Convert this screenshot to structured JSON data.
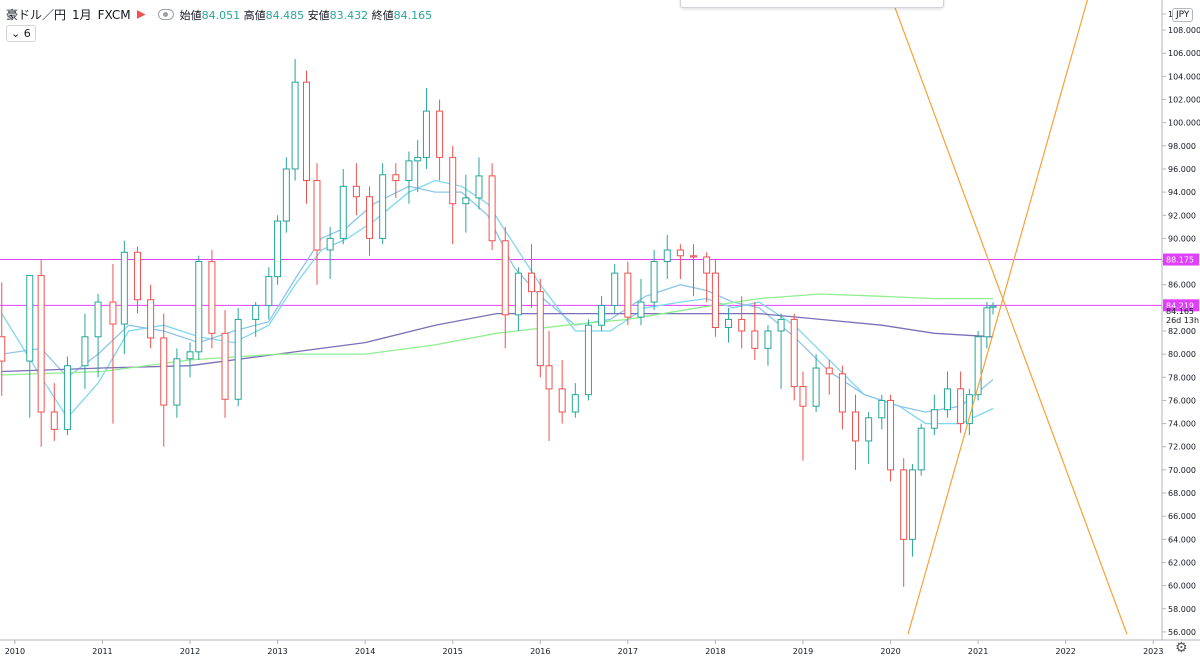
{
  "header": {
    "symbol": "豪ドル／円",
    "interval": "1月",
    "source": "FXCM",
    "open_label": "始値",
    "open_value": "84.051",
    "high_label": "高値",
    "high_value": "84.485",
    "low_label": "安値",
    "low_value": "83.432",
    "close_label": "終値",
    "close_value": "84.165"
  },
  "indicator_toggle": {
    "label": "6"
  },
  "currency_label": "JPY",
  "price_axis": {
    "ticks": [
      "1",
      "108.000",
      "106.000",
      "104.000",
      "102.000",
      "100.000",
      "98.000",
      "96.000",
      "94.000",
      "92.000",
      "90.000",
      "88.000",
      "86.000",
      "84.000",
      "82.000",
      "80.000",
      "78.000",
      "76.000",
      "74.000",
      "72.000",
      "70.000",
      "68.000",
      "66.000",
      "64.000",
      "62.000",
      "60.000",
      "58.000",
      "56.000"
    ],
    "tags": [
      {
        "text": "88.175",
        "value": 88.175,
        "color": "#e040fb"
      },
      {
        "text": "84.219",
        "value": 84.219,
        "color": "#e040fb"
      }
    ],
    "last_price": "84.165",
    "countdown": "26d 13h"
  },
  "time_axis": {
    "ticks": [
      "2010",
      "2011",
      "2012",
      "2013",
      "2014",
      "2015",
      "2016",
      "2017",
      "2018",
      "2019",
      "2020",
      "2021",
      "2022",
      "2023"
    ]
  },
  "chart_data": {
    "type": "candlestick",
    "title": "",
    "xlabel": "",
    "ylabel": "",
    "y_range": [
      55.3,
      110.6
    ],
    "x_range": [
      2009.83,
      2023.1
    ],
    "grid": false,
    "up_color": "#26a69a",
    "down_color": "#ef5350",
    "candle_points": [
      [
        2009.85,
        81.5,
        86.2,
        76.4,
        79.4
      ],
      [
        2010.17,
        79.4,
        82.1,
        74.5,
        86.8
      ],
      [
        2010.3,
        86.8,
        88.2,
        72.0,
        75.0
      ],
      [
        2010.45,
        75.0,
        77.5,
        72.5,
        73.5
      ],
      [
        2010.6,
        73.5,
        79.8,
        73.0,
        79.0
      ],
      [
        2010.8,
        79.0,
        83.5,
        77.0,
        81.5
      ],
      [
        2010.95,
        81.5,
        85.2,
        78.0,
        84.5
      ],
      [
        2011.12,
        84.5,
        87.8,
        74.0,
        82.6
      ],
      [
        2011.25,
        82.6,
        89.8,
        80.0,
        88.8
      ],
      [
        2011.4,
        88.8,
        89.3,
        83.5,
        84.7
      ],
      [
        2011.55,
        84.7,
        86.0,
        80.5,
        81.4
      ],
      [
        2011.7,
        81.4,
        83.5,
        72.0,
        75.6
      ],
      [
        2011.85,
        75.6,
        80.5,
        74.5,
        79.6
      ],
      [
        2012.0,
        79.6,
        81.0,
        78.0,
        80.2
      ],
      [
        2012.1,
        80.2,
        88.5,
        79.5,
        88.0
      ],
      [
        2012.25,
        88.0,
        89.0,
        80.5,
        81.8
      ],
      [
        2012.4,
        81.8,
        83.8,
        74.5,
        76.1
      ],
      [
        2012.55,
        76.1,
        84.0,
        75.5,
        83.0
      ],
      [
        2012.75,
        83.0,
        84.5,
        81.5,
        84.2
      ],
      [
        2012.9,
        84.2,
        87.5,
        83.0,
        86.7
      ],
      [
        2013.0,
        86.7,
        92.0,
        86.0,
        91.5
      ],
      [
        2013.1,
        91.5,
        97.0,
        90.5,
        96.0
      ],
      [
        2013.2,
        96.0,
        105.5,
        95.0,
        103.5
      ],
      [
        2013.33,
        103.5,
        104.5,
        93.0,
        95.0
      ],
      [
        2013.45,
        95.0,
        96.5,
        86.0,
        89.0
      ],
      [
        2013.6,
        89.0,
        91.0,
        86.5,
        90.0
      ],
      [
        2013.75,
        90.0,
        96.0,
        89.5,
        94.5
      ],
      [
        2013.9,
        94.5,
        96.5,
        92.0,
        93.6
      ],
      [
        2014.05,
        93.6,
        94.5,
        88.5,
        90.0
      ],
      [
        2014.2,
        90.0,
        96.5,
        89.5,
        95.5
      ],
      [
        2014.35,
        95.5,
        96.5,
        93.5,
        95.0
      ],
      [
        2014.5,
        95.0,
        97.5,
        93.0,
        96.7
      ],
      [
        2014.6,
        96.7,
        98.5,
        94.0,
        97.0
      ],
      [
        2014.7,
        97.0,
        103.0,
        96.0,
        101.0
      ],
      [
        2014.85,
        101.0,
        102.0,
        95.0,
        97.0
      ],
      [
        2015.0,
        97.0,
        98.0,
        89.5,
        93.0
      ],
      [
        2015.15,
        93.0,
        95.5,
        90.5,
        93.5
      ],
      [
        2015.3,
        93.5,
        97.0,
        92.5,
        95.4
      ],
      [
        2015.45,
        95.4,
        96.5,
        89.0,
        89.8
      ],
      [
        2015.6,
        89.8,
        91.0,
        80.5,
        83.4
      ],
      [
        2015.75,
        83.4,
        87.5,
        82.0,
        87.0
      ],
      [
        2015.9,
        87.0,
        89.5,
        84.0,
        85.4
      ],
      [
        2016.0,
        85.4,
        86.5,
        78.0,
        79.0
      ],
      [
        2016.1,
        79.0,
        82.0,
        72.5,
        77.0
      ],
      [
        2016.25,
        77.0,
        79.5,
        74.0,
        75.0
      ],
      [
        2016.4,
        75.0,
        77.5,
        74.5,
        76.5
      ],
      [
        2016.55,
        76.5,
        83.0,
        76.0,
        82.5
      ],
      [
        2016.7,
        82.5,
        85.0,
        82.0,
        84.2
      ],
      [
        2016.85,
        84.2,
        87.8,
        83.5,
        87.0
      ],
      [
        2017.0,
        87.0,
        88.0,
        82.5,
        83.2
      ],
      [
        2017.15,
        83.2,
        86.5,
        82.5,
        84.5
      ],
      [
        2017.3,
        84.5,
        89.0,
        83.8,
        88.0
      ],
      [
        2017.45,
        88.0,
        90.3,
        86.5,
        89.0
      ],
      [
        2017.6,
        89.0,
        89.5,
        86.5,
        88.5
      ],
      [
        2017.75,
        88.5,
        89.5,
        85.0,
        88.4
      ],
      [
        2017.9,
        88.4,
        88.8,
        84.5,
        87.0
      ],
      [
        2018.0,
        87.0,
        88.2,
        81.5,
        82.3
      ],
      [
        2018.15,
        82.3,
        84.0,
        81.0,
        83.0
      ],
      [
        2018.3,
        83.0,
        85.0,
        80.5,
        82.0
      ],
      [
        2018.45,
        82.0,
        84.5,
        79.5,
        80.5
      ],
      [
        2018.6,
        80.5,
        82.5,
        79.0,
        82.0
      ],
      [
        2018.75,
        82.0,
        83.5,
        77.0,
        83.0
      ],
      [
        2018.9,
        83.0,
        83.5,
        76.0,
        77.2
      ],
      [
        2019.0,
        77.2,
        78.5,
        70.8,
        75.5
      ],
      [
        2019.15,
        75.5,
        80.0,
        75.0,
        78.8
      ],
      [
        2019.3,
        78.8,
        79.5,
        76.5,
        78.3
      ],
      [
        2019.45,
        78.3,
        79.0,
        73.5,
        75.0
      ],
      [
        2019.6,
        75.0,
        76.5,
        70.0,
        72.5
      ],
      [
        2019.75,
        72.5,
        75.0,
        70.5,
        74.5
      ],
      [
        2019.9,
        74.5,
        76.5,
        73.5,
        76.0
      ],
      [
        2020.0,
        76.0,
        76.5,
        69.0,
        70.0
      ],
      [
        2020.15,
        70.0,
        71.0,
        59.9,
        64.0
      ],
      [
        2020.25,
        64.0,
        70.5,
        62.5,
        70.0
      ],
      [
        2020.35,
        70.0,
        74.0,
        69.5,
        73.6
      ],
      [
        2020.5,
        73.6,
        76.5,
        73.0,
        75.2
      ],
      [
        2020.65,
        75.2,
        78.5,
        74.5,
        77.0
      ],
      [
        2020.8,
        77.0,
        78.5,
        73.2,
        74.0
      ],
      [
        2020.9,
        74.0,
        77.0,
        73.0,
        76.5
      ],
      [
        2021.0,
        76.5,
        82.0,
        76.0,
        81.5
      ],
      [
        2021.1,
        81.5,
        84.5,
        80.5,
        84.0
      ],
      [
        2021.17,
        84.051,
        84.485,
        83.432,
        84.165
      ]
    ],
    "moving_averages": [
      {
        "color": "#7fd8f0",
        "points": [
          [
            2009.85,
            83.5
          ],
          [
            2010.3,
            78.0
          ],
          [
            2010.6,
            74.5
          ],
          [
            2010.95,
            77.5
          ],
          [
            2011.3,
            82.0
          ],
          [
            2011.7,
            82.5
          ],
          [
            2012.1,
            81.5
          ],
          [
            2012.5,
            81.0
          ],
          [
            2012.9,
            82.5
          ],
          [
            2013.2,
            86.0
          ],
          [
            2013.5,
            89.0
          ],
          [
            2013.8,
            90.0
          ],
          [
            2014.1,
            91.5
          ],
          [
            2014.5,
            94.0
          ],
          [
            2014.8,
            95.0
          ],
          [
            2015.1,
            94.5
          ],
          [
            2015.4,
            93.0
          ],
          [
            2015.7,
            89.5
          ],
          [
            2016.0,
            86.0
          ],
          [
            2016.4,
            82.0
          ],
          [
            2016.8,
            82.0
          ],
          [
            2017.2,
            84.0
          ],
          [
            2017.6,
            84.5
          ],
          [
            2017.9,
            84.8
          ],
          [
            2018.2,
            84.0
          ],
          [
            2018.5,
            84.5
          ],
          [
            2018.9,
            82.5
          ],
          [
            2019.3,
            79.5
          ],
          [
            2019.7,
            76.5
          ],
          [
            2020.1,
            75.5
          ],
          [
            2020.4,
            74.0
          ],
          [
            2020.8,
            74.0
          ],
          [
            2021.17,
            75.3
          ]
        ]
      },
      {
        "color": "#8ec5e8",
        "points": [
          [
            2009.85,
            80.0
          ],
          [
            2010.3,
            80.5
          ],
          [
            2010.6,
            78.0
          ],
          [
            2010.95,
            80.0
          ],
          [
            2011.3,
            82.5
          ],
          [
            2011.7,
            82.0
          ],
          [
            2012.1,
            81.0
          ],
          [
            2012.5,
            82.0
          ],
          [
            2012.9,
            82.8
          ],
          [
            2013.2,
            86.5
          ],
          [
            2013.5,
            90.0
          ],
          [
            2013.8,
            91.0
          ],
          [
            2014.1,
            93.0
          ],
          [
            2014.5,
            94.5
          ],
          [
            2014.8,
            94.0
          ],
          [
            2015.1,
            94.0
          ],
          [
            2015.4,
            92.0
          ],
          [
            2015.7,
            87.5
          ],
          [
            2016.0,
            85.0
          ],
          [
            2016.4,
            82.5
          ],
          [
            2016.8,
            83.0
          ],
          [
            2017.2,
            85.0
          ],
          [
            2017.6,
            86.0
          ],
          [
            2017.9,
            85.5
          ],
          [
            2018.2,
            84.5
          ],
          [
            2018.5,
            84.0
          ],
          [
            2018.9,
            81.5
          ],
          [
            2019.3,
            78.5
          ],
          [
            2019.7,
            76.5
          ],
          [
            2020.1,
            75.5
          ],
          [
            2020.4,
            75.0
          ],
          [
            2020.8,
            75.5
          ],
          [
            2021.17,
            77.8
          ]
        ]
      },
      {
        "color": "#7b6fb8",
        "points": [
          [
            2009.85,
            78.5
          ],
          [
            2011.0,
            78.8
          ],
          [
            2012.0,
            79.0
          ],
          [
            2013.0,
            80.0
          ],
          [
            2014.0,
            81.0
          ],
          [
            2014.8,
            82.5
          ],
          [
            2015.5,
            83.5
          ],
          [
            2016.3,
            83.5
          ],
          [
            2017.0,
            83.5
          ],
          [
            2017.8,
            83.5
          ],
          [
            2018.5,
            83.5
          ],
          [
            2019.2,
            83.0
          ],
          [
            2019.9,
            82.5
          ],
          [
            2020.5,
            81.8
          ],
          [
            2021.17,
            81.5
          ]
        ]
      },
      {
        "color": "#90ee90",
        "points": [
          [
            2009.85,
            78.2
          ],
          [
            2011.0,
            78.5
          ],
          [
            2012.0,
            79.5
          ],
          [
            2013.0,
            80.0
          ],
          [
            2014.0,
            80.0
          ],
          [
            2014.8,
            80.8
          ],
          [
            2015.5,
            81.8
          ],
          [
            2016.3,
            82.5
          ],
          [
            2017.0,
            83.0
          ],
          [
            2017.8,
            84.0
          ],
          [
            2018.5,
            84.8
          ],
          [
            2019.2,
            85.2
          ],
          [
            2019.9,
            85.0
          ],
          [
            2020.5,
            84.8
          ],
          [
            2021.17,
            84.8
          ]
        ]
      }
    ],
    "horizontal_lines": [
      {
        "value": 88.175,
        "color": "#e040fb"
      },
      {
        "value": 84.219,
        "color": "#e040fb"
      }
    ],
    "trend_lines": [
      {
        "color": "#f7a236",
        "from": [
          2019.95,
          112.0
        ],
        "to": [
          2022.7,
          55.8
        ]
      },
      {
        "color": "#f7a236",
        "from": [
          2020.2,
          55.8
        ],
        "to": [
          2022.3,
          112.0
        ]
      }
    ]
  }
}
